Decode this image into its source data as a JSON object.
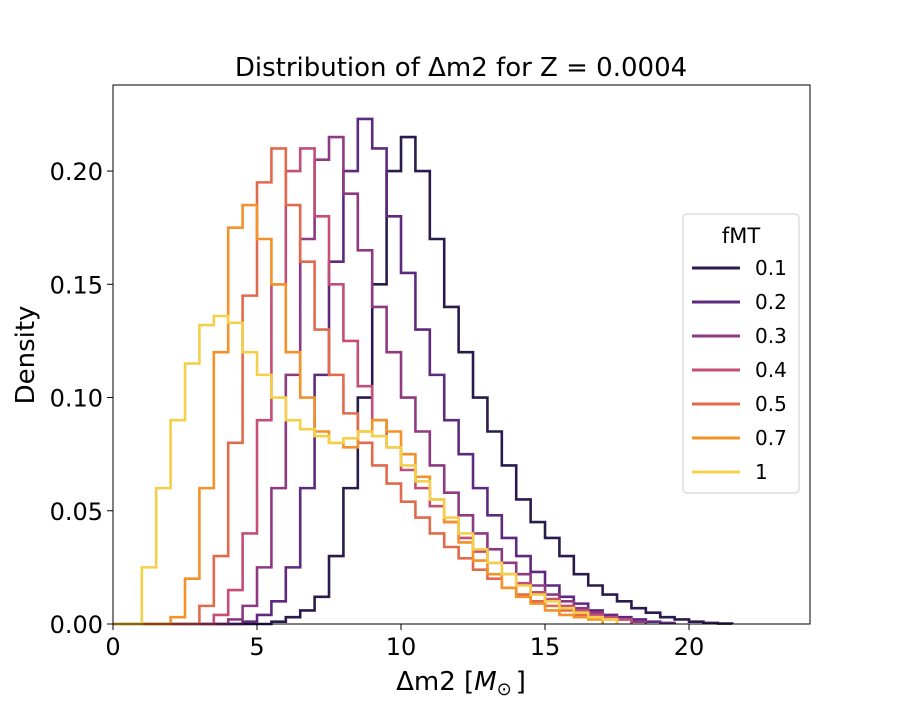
{
  "chart_data": {
    "type": "step-histogram",
    "title": "Distribution of Δm2 for Z = 0.0004",
    "xlabel": "Δm2 [",
    "xlabel_unit": "M",
    "xlabel_sub": "⊙",
    "xlabel_close": "]",
    "ylabel": "Density",
    "xlim": [
      0,
      24.2
    ],
    "ylim": [
      0,
      0.238
    ],
    "xticks": [
      0,
      5,
      10,
      15,
      20
    ],
    "xtick_labels": [
      "0",
      "5",
      "10",
      "15",
      "20"
    ],
    "yticks": [
      0.0,
      0.05,
      0.1,
      0.15,
      0.2
    ],
    "ytick_labels": [
      "0.00",
      "0.05",
      "0.10",
      "0.15",
      "0.20"
    ],
    "legend": {
      "title": "fMT",
      "placement": "right"
    },
    "series": [
      {
        "name": "0.1",
        "color": "#2a1b4d",
        "bins": [
          [
            0,
            0
          ],
          [
            5.5,
            0.001
          ],
          [
            6,
            0.003
          ],
          [
            6.5,
            0.006
          ],
          [
            7,
            0.012
          ],
          [
            7.5,
            0.03
          ],
          [
            8,
            0.06
          ],
          [
            8.5,
            0.1
          ],
          [
            9,
            0.15
          ],
          [
            9.5,
            0.2
          ],
          [
            10,
            0.215
          ],
          [
            10.5,
            0.2
          ],
          [
            11,
            0.17
          ],
          [
            11.5,
            0.14
          ],
          [
            12,
            0.12
          ],
          [
            12.5,
            0.1
          ],
          [
            13,
            0.085
          ],
          [
            13.5,
            0.07
          ],
          [
            14,
            0.055
          ],
          [
            14.5,
            0.045
          ],
          [
            15,
            0.038
          ],
          [
            15.5,
            0.03
          ],
          [
            16,
            0.022
          ],
          [
            16.5,
            0.017
          ],
          [
            17,
            0.013
          ],
          [
            17.5,
            0.01
          ],
          [
            18,
            0.007
          ],
          [
            18.5,
            0.005
          ],
          [
            19,
            0.003
          ],
          [
            19.5,
            0.002
          ],
          [
            20,
            0.001
          ],
          [
            20.5,
            0.0005
          ],
          [
            21,
            0.0002
          ]
        ]
      },
      {
        "name": "0.2",
        "color": "#5e2a7e",
        "bins": [
          [
            0,
            0
          ],
          [
            4.5,
            0.001
          ],
          [
            5,
            0.004
          ],
          [
            5.5,
            0.01
          ],
          [
            6,
            0.025
          ],
          [
            6.5,
            0.06
          ],
          [
            7,
            0.11
          ],
          [
            7.5,
            0.16
          ],
          [
            8,
            0.2
          ],
          [
            8.5,
            0.223
          ],
          [
            9,
            0.21
          ],
          [
            9.5,
            0.18
          ],
          [
            10,
            0.155
          ],
          [
            10.5,
            0.13
          ],
          [
            11,
            0.11
          ],
          [
            11.5,
            0.09
          ],
          [
            12,
            0.075
          ],
          [
            12.5,
            0.06
          ],
          [
            13,
            0.048
          ],
          [
            13.5,
            0.038
          ],
          [
            14,
            0.03
          ],
          [
            14.5,
            0.023
          ],
          [
            15,
            0.017
          ],
          [
            15.5,
            0.012
          ],
          [
            16,
            0.009
          ],
          [
            16.5,
            0.006
          ],
          [
            17,
            0.004
          ],
          [
            17.5,
            0.003
          ],
          [
            18,
            0.002
          ],
          [
            18.5,
            0.001
          ],
          [
            19,
            0.0005
          ]
        ]
      },
      {
        "name": "0.3",
        "color": "#8e3a82",
        "bins": [
          [
            0,
            0
          ],
          [
            4,
            0.002
          ],
          [
            4.5,
            0.008
          ],
          [
            5,
            0.025
          ],
          [
            5.5,
            0.06
          ],
          [
            6,
            0.11
          ],
          [
            6.5,
            0.17
          ],
          [
            7,
            0.205
          ],
          [
            7.5,
            0.215
          ],
          [
            8,
            0.19
          ],
          [
            8.5,
            0.165
          ],
          [
            9,
            0.14
          ],
          [
            9.5,
            0.12
          ],
          [
            10,
            0.1
          ],
          [
            10.5,
            0.085
          ],
          [
            11,
            0.07
          ],
          [
            11.5,
            0.058
          ],
          [
            12,
            0.048
          ],
          [
            12.5,
            0.04
          ],
          [
            13,
            0.033
          ],
          [
            13.5,
            0.027
          ],
          [
            14,
            0.022
          ],
          [
            14.5,
            0.017
          ],
          [
            15,
            0.013
          ],
          [
            15.5,
            0.01
          ],
          [
            16,
            0.007
          ],
          [
            16.5,
            0.005
          ],
          [
            17,
            0.003
          ],
          [
            17.5,
            0.002
          ],
          [
            18,
            0.001
          ]
        ]
      },
      {
        "name": "0.4",
        "color": "#c44e76",
        "bins": [
          [
            0,
            0
          ],
          [
            3.5,
            0.004
          ],
          [
            4,
            0.015
          ],
          [
            4.5,
            0.04
          ],
          [
            5,
            0.09
          ],
          [
            5.5,
            0.15
          ],
          [
            6,
            0.2
          ],
          [
            6.5,
            0.21
          ],
          [
            7,
            0.18
          ],
          [
            7.5,
            0.15
          ],
          [
            8,
            0.125
          ],
          [
            8.5,
            0.105
          ],
          [
            9,
            0.09
          ],
          [
            9.5,
            0.078
          ],
          [
            10,
            0.068
          ],
          [
            10.5,
            0.06
          ],
          [
            11,
            0.052
          ],
          [
            11.5,
            0.045
          ],
          [
            12,
            0.038
          ],
          [
            12.5,
            0.032
          ],
          [
            13,
            0.027
          ],
          [
            13.5,
            0.022
          ],
          [
            14,
            0.018
          ],
          [
            14.5,
            0.014
          ],
          [
            15,
            0.011
          ],
          [
            15.5,
            0.008
          ],
          [
            16,
            0.006
          ],
          [
            16.5,
            0.004
          ],
          [
            17,
            0.003
          ],
          [
            17.5,
            0.002
          ]
        ]
      },
      {
        "name": "0.5",
        "color": "#e26a4c",
        "bins": [
          [
            0,
            0
          ],
          [
            3,
            0.008
          ],
          [
            3.5,
            0.03
          ],
          [
            4,
            0.08
          ],
          [
            4.5,
            0.145
          ],
          [
            5,
            0.195
          ],
          [
            5.5,
            0.21
          ],
          [
            6,
            0.185
          ],
          [
            6.5,
            0.16
          ],
          [
            7,
            0.13
          ],
          [
            7.5,
            0.11
          ],
          [
            8,
            0.093
          ],
          [
            8.5,
            0.08
          ],
          [
            9,
            0.07
          ],
          [
            9.5,
            0.062
          ],
          [
            10,
            0.054
          ],
          [
            10.5,
            0.047
          ],
          [
            11,
            0.04
          ],
          [
            11.5,
            0.034
          ],
          [
            12,
            0.029
          ],
          [
            12.5,
            0.024
          ],
          [
            13,
            0.02
          ],
          [
            13.5,
            0.016
          ],
          [
            14,
            0.013
          ],
          [
            14.5,
            0.01
          ],
          [
            15,
            0.008
          ],
          [
            15.5,
            0.006
          ],
          [
            16,
            0.004
          ],
          [
            16.5,
            0.003
          ],
          [
            17,
            0.002
          ]
        ]
      },
      {
        "name": "0.7",
        "color": "#f3912a",
        "bins": [
          [
            0,
            0
          ],
          [
            2,
            0.003
          ],
          [
            2.5,
            0.02
          ],
          [
            3,
            0.06
          ],
          [
            3.5,
            0.12
          ],
          [
            4,
            0.175
          ],
          [
            4.5,
            0.185
          ],
          [
            5,
            0.17
          ],
          [
            5.5,
            0.15
          ],
          [
            6,
            0.12
          ],
          [
            6.5,
            0.1
          ],
          [
            7,
            0.085
          ],
          [
            7.5,
            0.08
          ],
          [
            8,
            0.078
          ],
          [
            8.5,
            0.085
          ],
          [
            9,
            0.09
          ],
          [
            9.5,
            0.085
          ],
          [
            10,
            0.075
          ],
          [
            10.5,
            0.065
          ],
          [
            11,
            0.055
          ],
          [
            11.5,
            0.045
          ],
          [
            12,
            0.036
          ],
          [
            12.5,
            0.028
          ],
          [
            13,
            0.022
          ],
          [
            13.5,
            0.016
          ],
          [
            14,
            0.012
          ],
          [
            14.5,
            0.009
          ],
          [
            15,
            0.006
          ],
          [
            15.5,
            0.004
          ],
          [
            16,
            0.003
          ],
          [
            16.5,
            0.002
          ]
        ]
      },
      {
        "name": "1",
        "color": "#f4d04a",
        "bins": [
          [
            0,
            0
          ],
          [
            1,
            0.025
          ],
          [
            1.5,
            0.06
          ],
          [
            2,
            0.09
          ],
          [
            2.5,
            0.115
          ],
          [
            3,
            0.132
          ],
          [
            3.5,
            0.136
          ],
          [
            4,
            0.133
          ],
          [
            4.5,
            0.12
          ],
          [
            5,
            0.11
          ],
          [
            5.5,
            0.1
          ],
          [
            6,
            0.09
          ],
          [
            6.5,
            0.086
          ],
          [
            7,
            0.083
          ],
          [
            7.5,
            0.08
          ],
          [
            8,
            0.082
          ],
          [
            8.5,
            0.085
          ],
          [
            9,
            0.083
          ],
          [
            9.5,
            0.078
          ],
          [
            10,
            0.07
          ],
          [
            10.5,
            0.063
          ],
          [
            11,
            0.055
          ],
          [
            11.5,
            0.047
          ],
          [
            12,
            0.04
          ],
          [
            12.5,
            0.033
          ],
          [
            13,
            0.027
          ],
          [
            13.5,
            0.022
          ],
          [
            14,
            0.017
          ],
          [
            14.5,
            0.013
          ],
          [
            15,
            0.01
          ],
          [
            15.5,
            0.007
          ],
          [
            16,
            0.005
          ],
          [
            16.5,
            0.003
          ],
          [
            17,
            0.002
          ]
        ]
      }
    ]
  }
}
